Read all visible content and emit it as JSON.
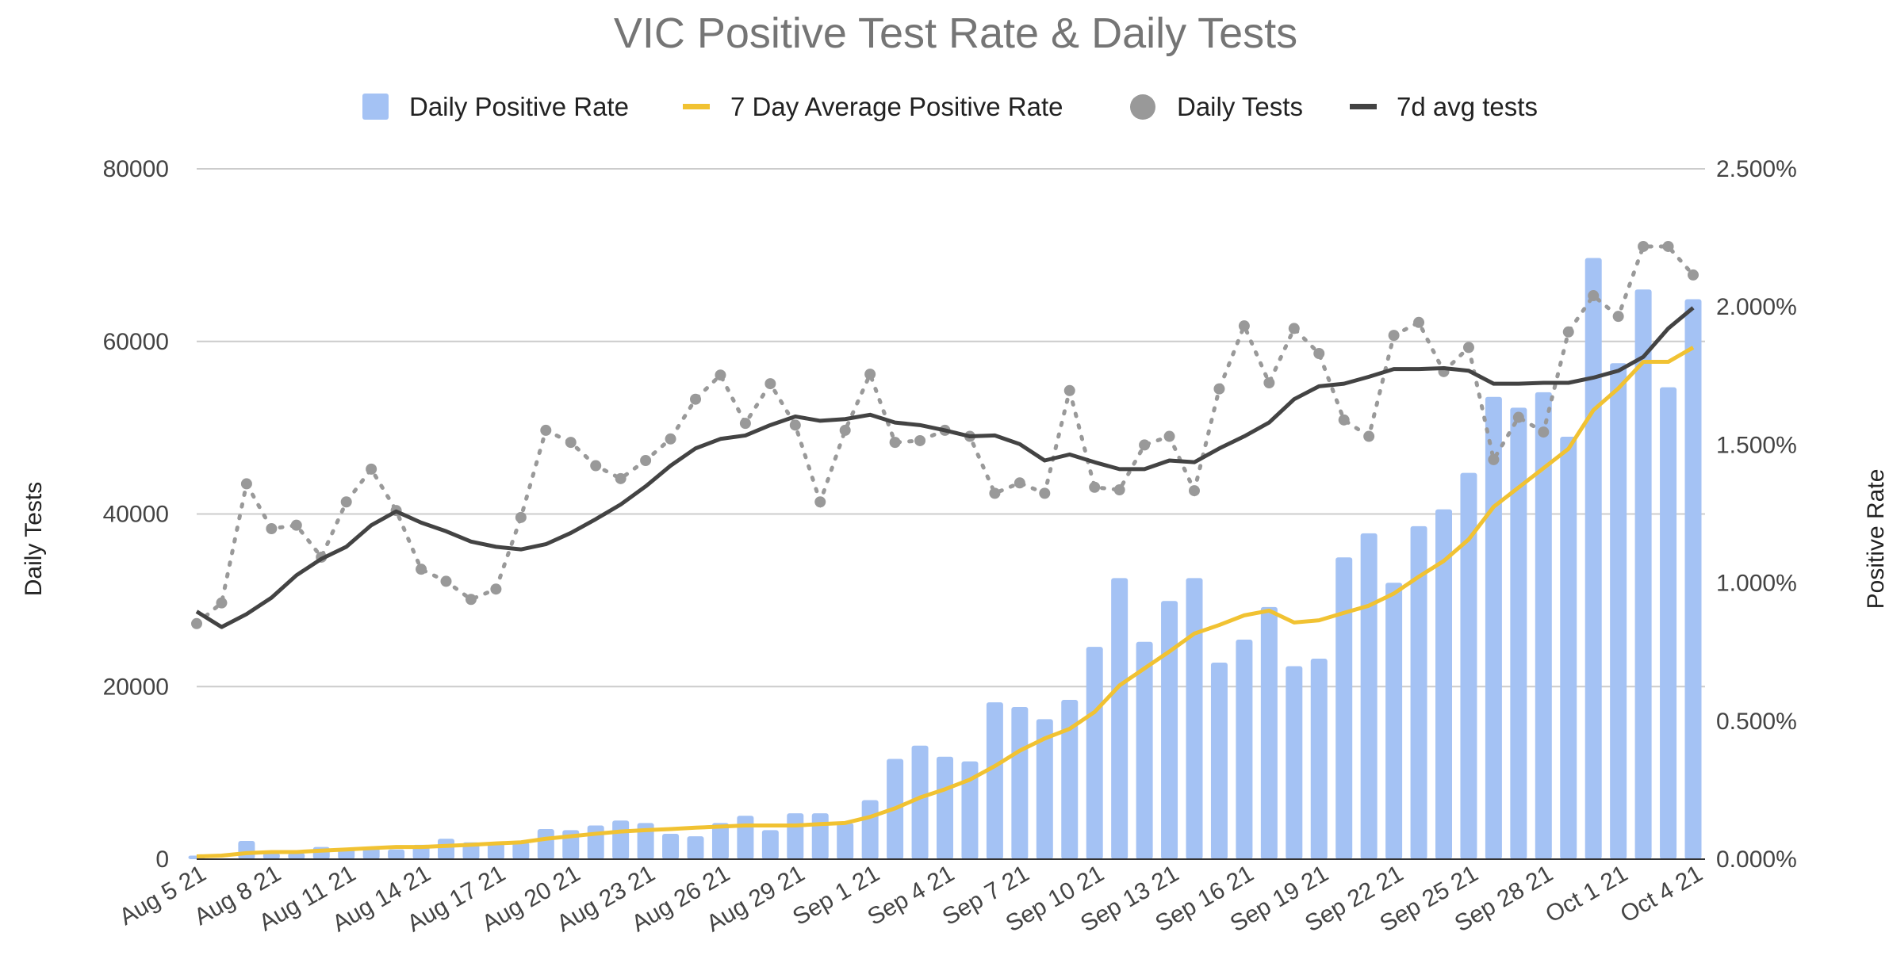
{
  "chart_data": {
    "type": "bar+line",
    "title": "VIC Positive Test Rate & Daily Tests",
    "legend_position": "top",
    "grid": true,
    "left_axis": {
      "label": "Daily Tests",
      "lim": [
        0,
        80000
      ],
      "ticks": [
        "0",
        "20000",
        "40000",
        "60000",
        "80000"
      ]
    },
    "right_axis": {
      "label": "Positive Rate",
      "lim": [
        0,
        2.5
      ],
      "unit": "%",
      "ticks": [
        "0.000%",
        "0.500%",
        "1.000%",
        "1.500%",
        "2.000%",
        "2.500%"
      ]
    },
    "x_tick_labels": [
      "Aug 5 21",
      "Aug 8 21",
      "Aug 11 21",
      "Aug 14 21",
      "Aug 17 21",
      "Aug 20 21",
      "Aug 23 21",
      "Aug 26 21",
      "Aug 29 21",
      "Sep 1 21",
      "Sep 4 21",
      "Sep 7 21",
      "Sep 10 21",
      "Sep 13 21",
      "Sep 16 21",
      "Sep 19 21",
      "Sep 22 21",
      "Sep 25 21",
      "Sep 28 21",
      "Oct 1 21",
      "Oct 4 21"
    ],
    "x_tick_every_days": 3,
    "dates": [
      "Aug 5 21",
      "Aug 6 21",
      "Aug 7 21",
      "Aug 8 21",
      "Aug 9 21",
      "Aug 10 21",
      "Aug 11 21",
      "Aug 12 21",
      "Aug 13 21",
      "Aug 14 21",
      "Aug 15 21",
      "Aug 16 21",
      "Aug 17 21",
      "Aug 18 21",
      "Aug 19 21",
      "Aug 20 21",
      "Aug 21 21",
      "Aug 22 21",
      "Aug 23 21",
      "Aug 24 21",
      "Aug 25 21",
      "Aug 26 21",
      "Aug 27 21",
      "Aug 28 21",
      "Aug 29 21",
      "Aug 30 21",
      "Aug 31 21",
      "Sep 1 21",
      "Sep 2 21",
      "Sep 3 21",
      "Sep 4 21",
      "Sep 5 21",
      "Sep 6 21",
      "Sep 7 21",
      "Sep 8 21",
      "Sep 9 21",
      "Sep 10 21",
      "Sep 11 21",
      "Sep 12 21",
      "Sep 13 21",
      "Sep 14 21",
      "Sep 15 21",
      "Sep 16 21",
      "Sep 17 21",
      "Sep 18 21",
      "Sep 19 21",
      "Sep 20 21",
      "Sep 21 21",
      "Sep 22 21",
      "Sep 23 21",
      "Sep 24 21",
      "Sep 25 21",
      "Sep 26 21",
      "Sep 27 21",
      "Sep 28 21",
      "Sep 29 21",
      "Sep 30 21",
      "Oct 1 21",
      "Oct 2 21",
      "Oct 3 21",
      "Oct 4 21"
    ],
    "series": [
      {
        "name": "Daily Positive Rate",
        "type": "bar",
        "axis": "right",
        "color": "#a4c2f4",
        "values": [
          0.013,
          0.0,
          0.066,
          0.022,
          0.022,
          0.044,
          0.04,
          0.04,
          0.035,
          0.052,
          0.074,
          0.061,
          0.061,
          0.061,
          0.109,
          0.105,
          0.122,
          0.14,
          0.131,
          0.092,
          0.083,
          0.131,
          0.157,
          0.105,
          0.166,
          0.166,
          0.131,
          0.214,
          0.363,
          0.411,
          0.371,
          0.354,
          0.568,
          0.551,
          0.507,
          0.577,
          0.769,
          1.018,
          0.787,
          0.935,
          1.018,
          0.712,
          0.795,
          0.913,
          0.699,
          0.726,
          1.093,
          1.18,
          1.001,
          1.206,
          1.267,
          1.399,
          1.674,
          1.635,
          1.691,
          1.53,
          2.177,
          1.796,
          2.063,
          1.709,
          2.028
        ]
      },
      {
        "name": "7 Day Average Positive Rate",
        "type": "line",
        "axis": "right",
        "color": "#f1c232",
        "values": [
          0.01,
          0.013,
          0.022,
          0.026,
          0.026,
          0.031,
          0.035,
          0.04,
          0.044,
          0.044,
          0.048,
          0.052,
          0.057,
          0.061,
          0.074,
          0.083,
          0.092,
          0.1,
          0.105,
          0.109,
          0.114,
          0.118,
          0.122,
          0.122,
          0.122,
          0.127,
          0.131,
          0.153,
          0.184,
          0.223,
          0.253,
          0.288,
          0.337,
          0.393,
          0.437,
          0.472,
          0.533,
          0.629,
          0.691,
          0.752,
          0.817,
          0.848,
          0.883,
          0.9,
          0.857,
          0.865,
          0.892,
          0.918,
          0.962,
          1.023,
          1.08,
          1.158,
          1.276,
          1.346,
          1.416,
          1.486,
          1.626,
          1.705,
          1.801,
          1.801,
          1.853
        ]
      },
      {
        "name": "Daily Tests",
        "type": "dotted-line-markers",
        "axis": "left",
        "color": "#999999",
        "values": [
          27300,
          29700,
          43500,
          38300,
          38700,
          35000,
          41400,
          45200,
          40400,
          33600,
          32200,
          30100,
          31300,
          39600,
          49700,
          48300,
          45600,
          44100,
          46200,
          48700,
          53300,
          56100,
          50500,
          55100,
          50300,
          41400,
          49700,
          56200,
          48300,
          48500,
          49700,
          49000,
          42400,
          43600,
          42400,
          54300,
          43100,
          42800,
          48000,
          49000,
          42700,
          54500,
          61800,
          55200,
          61500,
          58600,
          50900,
          49000,
          60700,
          62200,
          56500,
          59300,
          46300,
          51200,
          49500,
          61100,
          65300,
          62900,
          71000,
          71000,
          67700
        ]
      },
      {
        "name": "7d avg tests",
        "type": "line",
        "axis": "left",
        "color": "#434343",
        "values": [
          28700,
          26900,
          28400,
          30300,
          32900,
          34800,
          36200,
          38700,
          40300,
          39000,
          38000,
          36800,
          36200,
          35900,
          36500,
          37800,
          39400,
          41100,
          43200,
          45600,
          47600,
          48700,
          49100,
          50300,
          51300,
          50800,
          51000,
          51500,
          50600,
          50300,
          49700,
          49000,
          49100,
          48100,
          46200,
          46900,
          46000,
          45200,
          45200,
          46200,
          46000,
          47600,
          49000,
          50600,
          53300,
          54800,
          55100,
          55900,
          56800,
          56800,
          56900,
          56600,
          55100,
          55100,
          55200,
          55200,
          55800,
          56600,
          58200,
          61500,
          63900
        ]
      }
    ]
  }
}
